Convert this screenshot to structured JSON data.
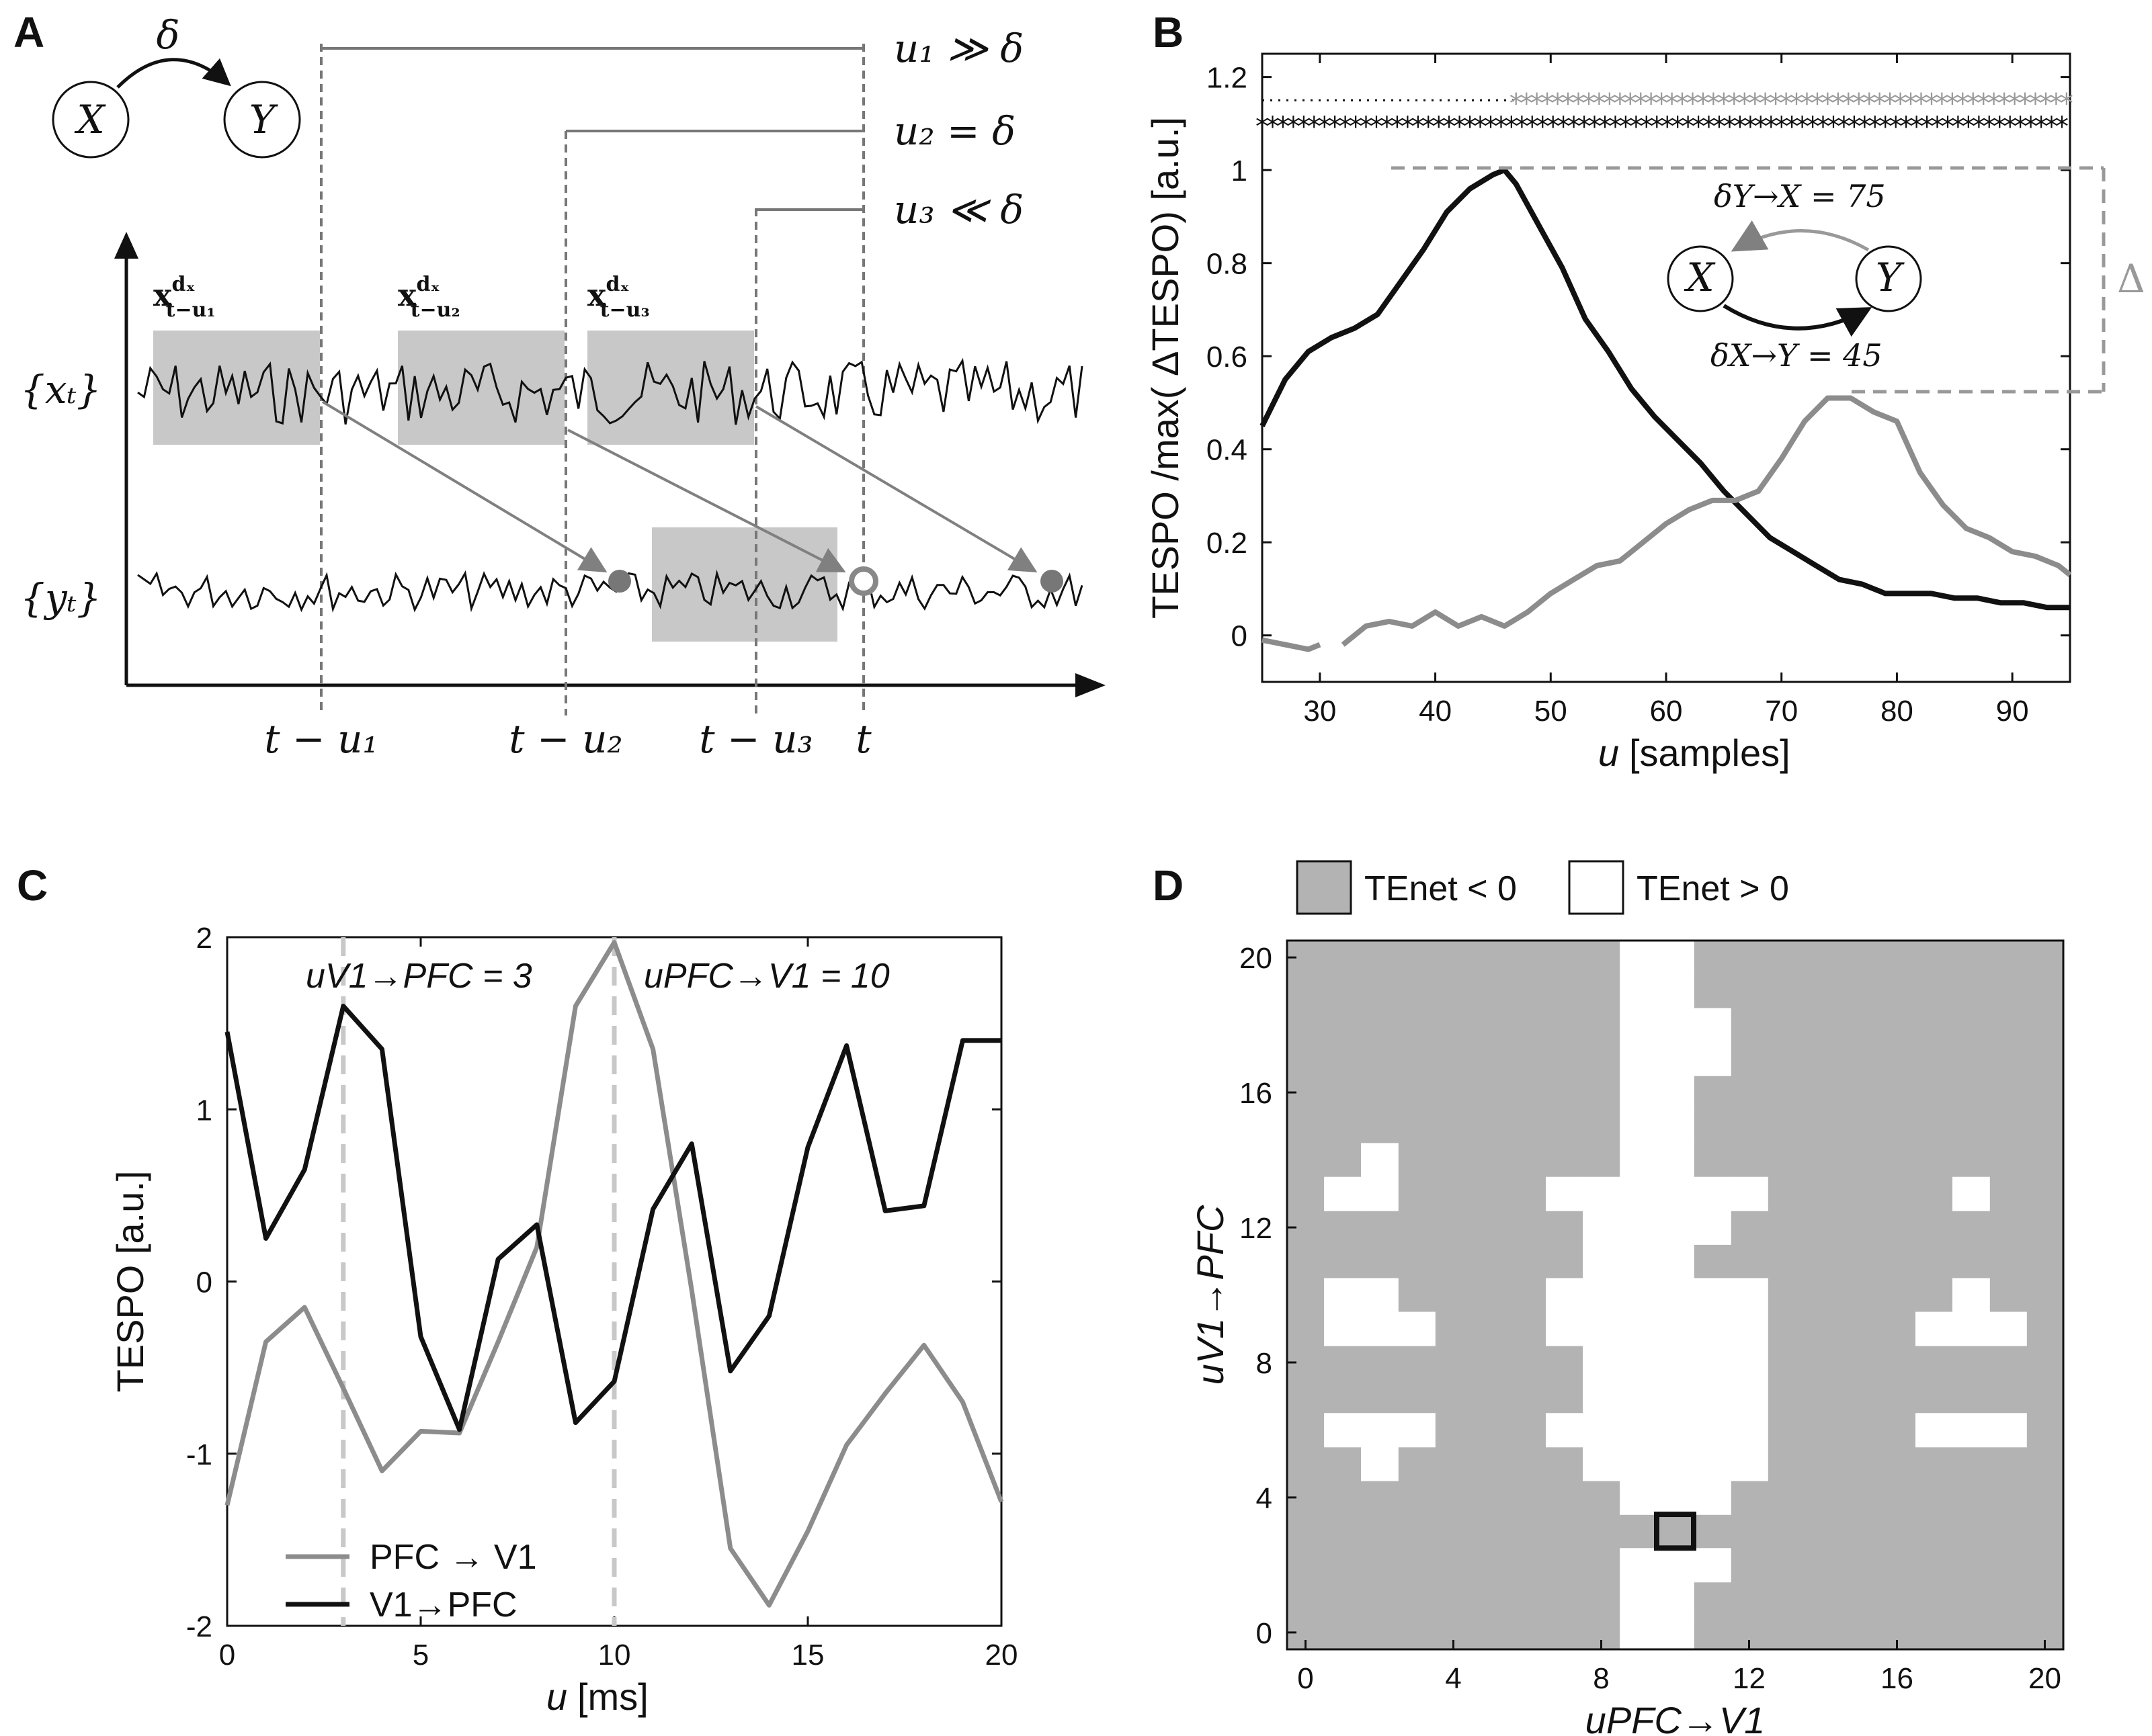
{
  "panels": {
    "A": {
      "letter": "A",
      "nodes": [
        "X",
        "Y"
      ],
      "delay_symbol": "δ",
      "u_labels": [
        "u₁ ≫ δ",
        "u₂ = δ",
        "u₃ ≪ δ"
      ],
      "x_series_label": "{xₜ}",
      "y_series_label": "{yₜ}",
      "window_labels": [
        "x_{t-u₁}^{dₓ}",
        "x_{t-u₂}^{dₓ}",
        "x_{t-u₃}^{dₓ}"
      ],
      "window_base": "x",
      "window_sup": "dₓ",
      "window_subs": [
        "t−u₁",
        "t−u₂",
        "t−u₃"
      ],
      "time_labels": [
        "t − u₁",
        "t − u₂",
        "t − u₃",
        "t"
      ]
    },
    "B": {
      "letter": "B",
      "delta_label": "Δ",
      "inset_nodes": [
        "X",
        "Y"
      ],
      "inset_labels": [
        "δY→X = 75",
        "δX→Y = 45"
      ]
    },
    "C": {
      "letter": "C",
      "annotations": [
        "uV1→PFC = 3",
        "uPFC→V1 = 10"
      ]
    },
    "D": {
      "letter": "D",
      "legend": [
        "TEnet < 0",
        "TEnet > 0"
      ]
    }
  },
  "chart_data": [
    {
      "panel": "B",
      "type": "line",
      "title": "",
      "xlabel": "u [samples]",
      "ylabel": "TESPO /max( ΔTESPO) [a.u.]",
      "xlim": [
        25,
        95
      ],
      "ylim": [
        -0.1,
        1.25
      ],
      "xticks": [
        30,
        40,
        50,
        60,
        70,
        80,
        90
      ],
      "yticks": [
        0,
        0.2,
        0.4,
        0.6,
        0.8,
        1,
        1.2
      ],
      "series": [
        {
          "name": "X→Y",
          "color": "#111111",
          "x": [
            25,
            27,
            29,
            31,
            33,
            35,
            37,
            39,
            41,
            43,
            45,
            46,
            47,
            49,
            51,
            53,
            55,
            57,
            59,
            61,
            63,
            65,
            67,
            69,
            71,
            73,
            75,
            77,
            79,
            81,
            83,
            85,
            87,
            89,
            91,
            93,
            95
          ],
          "y": [
            0.45,
            0.55,
            0.61,
            0.64,
            0.66,
            0.69,
            0.76,
            0.83,
            0.91,
            0.96,
            0.99,
            1.0,
            0.97,
            0.88,
            0.79,
            0.68,
            0.61,
            0.53,
            0.47,
            0.42,
            0.37,
            0.31,
            0.26,
            0.21,
            0.18,
            0.15,
            0.12,
            0.11,
            0.09,
            0.09,
            0.09,
            0.08,
            0.08,
            0.07,
            0.07,
            0.06,
            0.06
          ]
        },
        {
          "name": "Y→X",
          "color": "#8c8c8c",
          "x": [
            25,
            27,
            29,
            30,
            null,
            32,
            34,
            36,
            38,
            40,
            42,
            44,
            46,
            48,
            50,
            52,
            54,
            56,
            58,
            60,
            62,
            64,
            66,
            68,
            70,
            72,
            74,
            76,
            78,
            80,
            82,
            84,
            86,
            88,
            90,
            92,
            94,
            95
          ],
          "y": [
            -0.01,
            -0.02,
            -0.03,
            -0.02,
            null,
            -0.02,
            0.02,
            0.03,
            0.02,
            0.05,
            0.02,
            0.04,
            0.02,
            0.05,
            0.09,
            0.12,
            0.15,
            0.16,
            0.2,
            0.24,
            0.27,
            0.29,
            0.29,
            0.31,
            0.38,
            0.46,
            0.51,
            0.51,
            0.48,
            0.46,
            0.35,
            0.28,
            0.23,
            0.21,
            0.18,
            0.17,
            0.15,
            0.13
          ]
        }
      ],
      "markers": [
        {
          "name": "significance-gray",
          "y": 1.15,
          "color": "#999999",
          "x_start": 47,
          "x_end": 95,
          "dotted_from": 25
        },
        {
          "name": "significance-black",
          "y": 1.1,
          "color": "#111111",
          "x_start": 25,
          "x_end": 95
        }
      ]
    },
    {
      "panel": "C",
      "type": "line",
      "title": "",
      "xlabel": "u [ms]",
      "ylabel": "TESPO [a.u.]",
      "xlim": [
        0,
        20
      ],
      "ylim": [
        -2,
        2
      ],
      "xticks": [
        0,
        5,
        10,
        15,
        20
      ],
      "yticks": [
        -2,
        -1,
        0,
        1,
        2
      ],
      "vlines": [
        3,
        10
      ],
      "legend_position": "bottom-left",
      "series": [
        {
          "name": "PFC → V1",
          "color": "#8c8c8c",
          "x": [
            0,
            1,
            2,
            3,
            4,
            5,
            6,
            7,
            8,
            9,
            10,
            11,
            12,
            13,
            14,
            15,
            16,
            17,
            18,
            19,
            20
          ],
          "y": [
            -1.3,
            -0.35,
            -0.15,
            -0.62,
            -1.1,
            -0.87,
            -0.88,
            -0.35,
            0.2,
            1.6,
            1.97,
            1.35,
            -0.05,
            -1.55,
            -1.88,
            -1.45,
            -0.95,
            -0.65,
            -0.37,
            -0.7,
            -1.28
          ]
        },
        {
          "name": "V1→PFC",
          "color": "#111111",
          "x": [
            0,
            1,
            2,
            3,
            4,
            5,
            6,
            7,
            8,
            9,
            10,
            11,
            12,
            13,
            14,
            15,
            16,
            17,
            18,
            19,
            20
          ],
          "y": [
            1.45,
            0.25,
            0.65,
            1.6,
            1.35,
            -0.32,
            -0.86,
            0.13,
            0.33,
            -0.82,
            -0.58,
            0.42,
            0.8,
            -0.52,
            -0.2,
            0.78,
            1.37,
            0.41,
            0.44,
            1.4,
            1.4
          ]
        }
      ]
    },
    {
      "panel": "D",
      "type": "heatmap",
      "title": "",
      "xlabel": "uPFC→V1",
      "ylabel": "uV1→PFC",
      "xlim": [
        0,
        20
      ],
      "ylim": [
        0,
        20
      ],
      "xticks": [
        0,
        4,
        8,
        12,
        16,
        20
      ],
      "yticks": [
        0,
        4,
        8,
        12,
        16,
        20
      ],
      "highlight": [
        10,
        3
      ],
      "legend": [
        "TEnet < 0",
        "TEnet > 0"
      ],
      "positive_cells_by_row": [
        {
          "y": 20,
          "x": [
            9,
            10
          ]
        },
        {
          "y": 19,
          "x": [
            9,
            10
          ]
        },
        {
          "y": 18,
          "x": [
            9,
            10,
            11
          ]
        },
        {
          "y": 17,
          "x": [
            9,
            10,
            11
          ]
        },
        {
          "y": 16,
          "x": [
            9,
            10
          ]
        },
        {
          "y": 15,
          "x": [
            9,
            10
          ]
        },
        {
          "y": 14,
          "x": [
            2,
            9,
            10
          ]
        },
        {
          "y": 13,
          "x": [
            1,
            2,
            7,
            8,
            9,
            10,
            11,
            12,
            18
          ]
        },
        {
          "y": 12,
          "x": [
            8,
            9,
            10,
            11
          ]
        },
        {
          "y": 11,
          "x": [
            8,
            9,
            10
          ]
        },
        {
          "y": 10,
          "x": [
            1,
            2,
            7,
            8,
            9,
            10,
            11,
            12,
            18
          ]
        },
        {
          "y": 9,
          "x": [
            1,
            2,
            3,
            7,
            8,
            9,
            10,
            11,
            12,
            17,
            18,
            19
          ]
        },
        {
          "y": 8,
          "x": [
            8,
            9,
            10,
            11,
            12
          ]
        },
        {
          "y": 7,
          "x": [
            8,
            9,
            10,
            11,
            12
          ]
        },
        {
          "y": 6,
          "x": [
            1,
            2,
            3,
            7,
            8,
            9,
            10,
            11,
            12,
            17,
            18,
            19
          ]
        },
        {
          "y": 5,
          "x": [
            2,
            8,
            9,
            10,
            11,
            12
          ]
        },
        {
          "y": 4,
          "x": [
            9,
            10,
            11
          ]
        },
        {
          "y": 3,
          "x": []
        },
        {
          "y": 2,
          "x": [
            9,
            10,
            11
          ]
        },
        {
          "y": 1,
          "x": [
            9,
            10
          ]
        },
        {
          "y": 0,
          "x": [
            9,
            10
          ]
        }
      ]
    }
  ]
}
